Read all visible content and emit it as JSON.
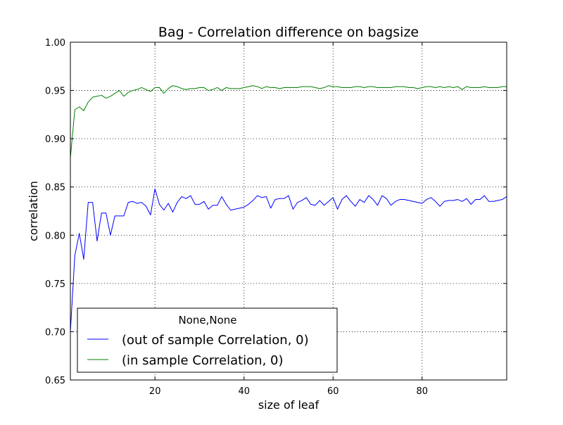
{
  "chart_data": {
    "type": "line",
    "title": "Bag - Correlation difference on bagsize",
    "xlabel": "size of leaf",
    "ylabel": "correlation",
    "xlim": [
      1,
      99
    ],
    "ylim": [
      0.65,
      1.0
    ],
    "xticks": [
      20,
      40,
      60,
      80
    ],
    "xtick_labels": [
      "20",
      "40",
      "60",
      "80"
    ],
    "yticks": [
      0.65,
      0.7,
      0.75,
      0.8,
      0.85,
      0.9,
      0.95,
      1.0
    ],
    "ytick_labels": [
      "0.65",
      "0.70",
      "0.75",
      "0.80",
      "0.85",
      "0.90",
      "0.95",
      "1.00"
    ],
    "grid": true,
    "legend": {
      "title": "None,None",
      "placement": "lower-left"
    },
    "x": [
      1,
      2,
      3,
      4,
      5,
      6,
      7,
      8,
      9,
      10,
      11,
      12,
      13,
      14,
      15,
      16,
      17,
      18,
      19,
      20,
      21,
      22,
      23,
      24,
      25,
      26,
      27,
      28,
      29,
      30,
      31,
      32,
      33,
      34,
      35,
      36,
      37,
      38,
      39,
      40,
      41,
      42,
      43,
      44,
      45,
      46,
      47,
      48,
      49,
      50,
      51,
      52,
      53,
      54,
      55,
      56,
      57,
      58,
      59,
      60,
      61,
      62,
      63,
      64,
      65,
      66,
      67,
      68,
      69,
      70,
      71,
      72,
      73,
      74,
      75,
      76,
      77,
      78,
      79,
      80,
      81,
      82,
      83,
      84,
      85,
      86,
      87,
      88,
      89,
      90,
      91,
      92,
      93,
      94,
      95,
      96,
      97,
      98,
      99
    ],
    "series": [
      {
        "name": "(out of sample Correlation, 0)",
        "color": "#0000ff",
        "values": [
          0.7,
          0.779,
          0.802,
          0.775,
          0.834,
          0.834,
          0.794,
          0.823,
          0.823,
          0.8,
          0.82,
          0.82,
          0.82,
          0.834,
          0.835,
          0.833,
          0.834,
          0.83,
          0.821,
          0.848,
          0.832,
          0.826,
          0.833,
          0.824,
          0.834,
          0.84,
          0.838,
          0.841,
          0.832,
          0.832,
          0.835,
          0.827,
          0.831,
          0.831,
          0.84,
          0.832,
          0.826,
          0.827,
          0.828,
          0.829,
          0.832,
          0.836,
          0.841,
          0.839,
          0.84,
          0.828,
          0.837,
          0.838,
          0.838,
          0.841,
          0.827,
          0.834,
          0.836,
          0.839,
          0.832,
          0.831,
          0.836,
          0.831,
          0.835,
          0.839,
          0.827,
          0.837,
          0.841,
          0.835,
          0.83,
          0.837,
          0.834,
          0.841,
          0.837,
          0.831,
          0.841,
          0.838,
          0.831,
          0.835,
          0.837,
          0.837,
          0.836,
          0.835,
          0.834,
          0.833,
          0.837,
          0.839,
          0.835,
          0.83,
          0.835,
          0.836,
          0.836,
          0.837,
          0.835,
          0.838,
          0.832,
          0.837,
          0.837,
          0.841,
          0.835,
          0.835,
          0.836,
          0.837,
          0.84
        ]
      },
      {
        "name": "(in sample Correlation, 0)",
        "color": "#008000",
        "values": [
          0.88,
          0.93,
          0.933,
          0.929,
          0.938,
          0.943,
          0.944,
          0.945,
          0.942,
          0.944,
          0.947,
          0.95,
          0.944,
          0.948,
          0.95,
          0.951,
          0.953,
          0.951,
          0.949,
          0.953,
          0.953,
          0.947,
          0.952,
          0.955,
          0.954,
          0.952,
          0.951,
          0.952,
          0.952,
          0.953,
          0.953,
          0.95,
          0.951,
          0.953,
          0.95,
          0.953,
          0.952,
          0.952,
          0.952,
          0.953,
          0.954,
          0.955,
          0.954,
          0.952,
          0.954,
          0.953,
          0.953,
          0.952,
          0.953,
          0.953,
          0.953,
          0.953,
          0.954,
          0.954,
          0.954,
          0.953,
          0.952,
          0.953,
          0.955,
          0.954,
          0.954,
          0.953,
          0.953,
          0.953,
          0.954,
          0.954,
          0.953,
          0.954,
          0.954,
          0.953,
          0.953,
          0.953,
          0.953,
          0.954,
          0.954,
          0.954,
          0.953,
          0.953,
          0.952,
          0.953,
          0.954,
          0.954,
          0.953,
          0.954,
          0.953,
          0.954,
          0.953,
          0.954,
          0.951,
          0.954,
          0.953,
          0.953,
          0.953,
          0.954,
          0.953,
          0.953,
          0.953,
          0.954,
          0.954
        ]
      }
    ]
  }
}
